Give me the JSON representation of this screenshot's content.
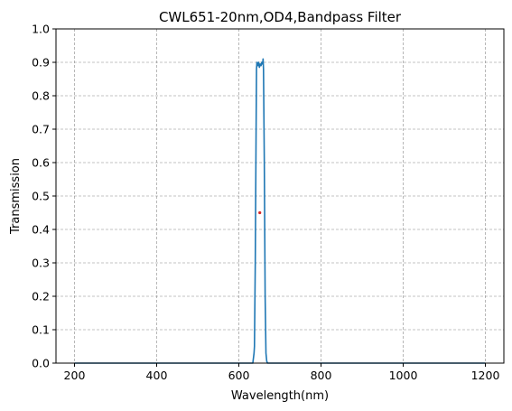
{
  "chart_data": {
    "type": "line",
    "title": "CWL651-20nm,OD4,Bandpass Filter",
    "xlabel": "Wavelength(nm)",
    "ylabel": "Transmission",
    "xlim": [
      155,
      1245
    ],
    "ylim": [
      0,
      1.0
    ],
    "x_ticks": [
      200,
      400,
      600,
      800,
      1000,
      1200
    ],
    "y_ticks": [
      "0.0",
      "0.1",
      "0.2",
      "0.3",
      "0.4",
      "0.5",
      "0.6",
      "0.7",
      "0.8",
      "0.9",
      "1.0"
    ],
    "grid": true,
    "legend": "none",
    "series": [
      {
        "color": "#1f77b4",
        "x": [
          200,
          600,
          634,
          636,
          637,
          638,
          640,
          642,
          643,
          644,
          646,
          648,
          650,
          652,
          654,
          656,
          658,
          659,
          660,
          662,
          664,
          666,
          668,
          670,
          700,
          1000,
          1200
        ],
        "y": [
          0.0,
          0.0,
          0.0,
          0.02,
          0.03,
          0.05,
          0.3,
          0.7,
          0.88,
          0.9,
          0.89,
          0.9,
          0.885,
          0.895,
          0.89,
          0.9,
          0.895,
          0.91,
          0.88,
          0.6,
          0.2,
          0.03,
          0.005,
          0.0,
          0.0,
          0.0,
          0.0
        ]
      }
    ],
    "marker": {
      "x": 651,
      "y": 0.45,
      "color": "#d62728"
    }
  }
}
